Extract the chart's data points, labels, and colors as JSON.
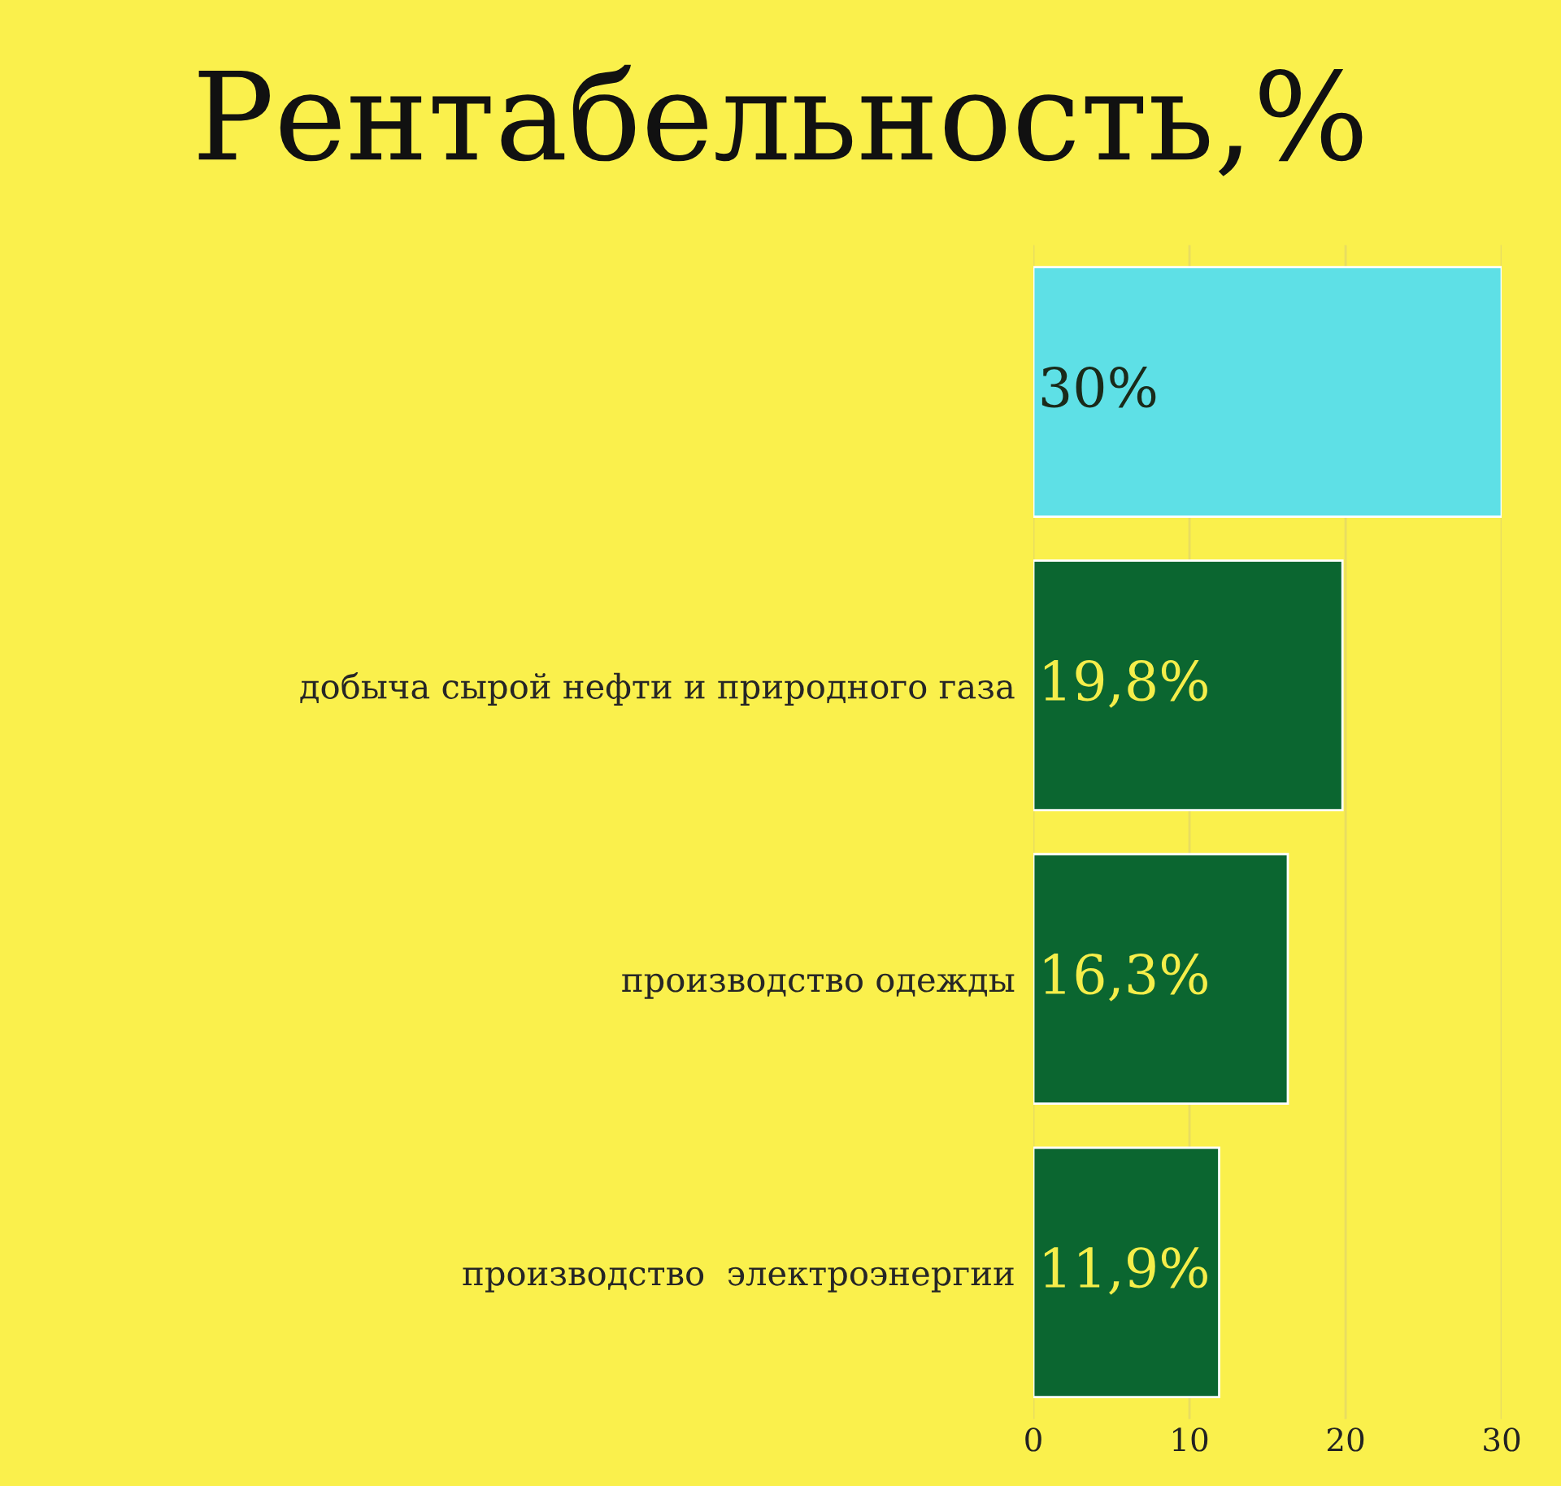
{
  "chart_data": {
    "type": "bar",
    "orientation": "horizontal",
    "title": "Рентабельность,%",
    "categories": [
      null,
      "добыча сырой нефти и природного газа",
      "производство одежды",
      "производство  электроэнергии"
    ],
    "values": [
      30,
      19.8,
      16.3,
      11.9
    ],
    "value_labels": [
      "30%",
      "19,8%",
      "16,3%",
      "11,9%"
    ],
    "colors": [
      "#5ee0e6",
      "#0b6630",
      "#0b6630",
      "#0b6630"
    ],
    "xlim": [
      0,
      30
    ],
    "xticks": [
      0,
      10,
      20,
      30
    ],
    "grid": "x",
    "legend": false
  }
}
